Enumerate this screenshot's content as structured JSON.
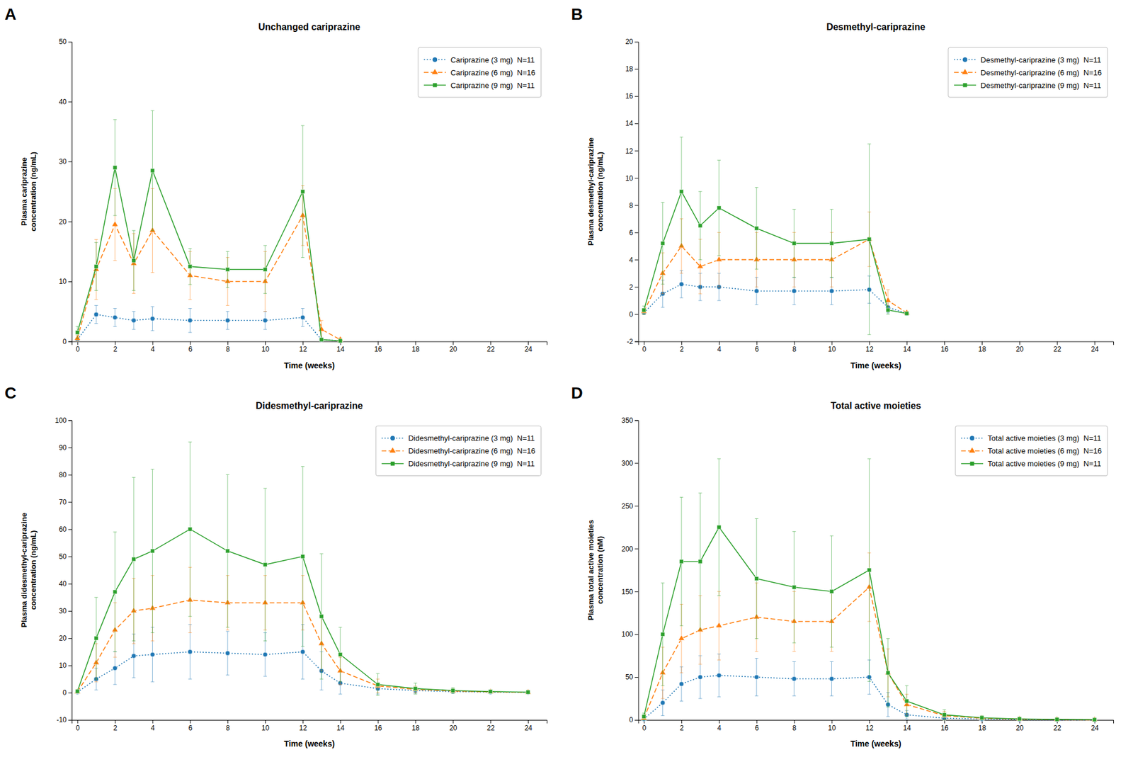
{
  "chart_data": [
    {
      "type": "line",
      "title": "Unchanged cariprazine",
      "annotations": [
        "A"
      ],
      "xlabel": "Time (weeks)",
      "ylabel": "Plasma cariprazine\nconcentration (ng/mL)",
      "x": [
        0,
        1,
        2,
        3,
        4,
        6,
        8,
        10,
        12,
        13,
        14
      ],
      "xlim": [
        -0.3,
        25
      ],
      "xticks": [
        0,
        2,
        4,
        6,
        8,
        10,
        12,
        14,
        16,
        18,
        20,
        22,
        24
      ],
      "ylim": [
        0,
        50
      ],
      "yticks": [
        0,
        10,
        20,
        30,
        40,
        50
      ],
      "grid": false,
      "legend": "upper right",
      "series": [
        {
          "name": "Cariprazine (3 mg)  N=11",
          "marker": "circle",
          "line_style": "dotted",
          "values": [
            0.3,
            4.5,
            4.0,
            3.5,
            3.8,
            3.5,
            3.5,
            3.5,
            4.0,
            0.3,
            0.1
          ],
          "errors": [
            0.3,
            1.5,
            1.5,
            1.5,
            2.0,
            2.0,
            1.5,
            1.5,
            1.5,
            0.3,
            0.1
          ]
        },
        {
          "name": "Cariprazine (6 mg)  N=16",
          "marker": "triangle",
          "line_style": "dashed",
          "values": [
            0.5,
            12.0,
            19.5,
            13.0,
            18.5,
            11.0,
            10.0,
            10.0,
            21.0,
            2.0,
            0.3
          ],
          "errors": [
            0.5,
            5.0,
            6.0,
            5.0,
            7.0,
            4.0,
            4.0,
            5.0,
            5.0,
            1.5,
            0.3
          ]
        },
        {
          "name": "Cariprazine (9 mg)  N=11",
          "marker": "square",
          "line_style": "solid",
          "values": [
            1.5,
            12.5,
            29.0,
            13.5,
            28.5,
            12.5,
            12.0,
            12.0,
            25.0,
            0.3,
            0.1
          ],
          "errors": [
            1.0,
            4.0,
            8.0,
            5.0,
            10.0,
            3.0,
            3.0,
            4.0,
            11.0,
            0.3,
            0.1
          ]
        }
      ]
    },
    {
      "type": "line",
      "title": "Desmethyl-cariprazine",
      "annotations": [
        "B"
      ],
      "xlabel": "Time (weeks)",
      "ylabel": "Plasma desmethyl-cariprazine\nconcentration (ng/mL)",
      "x": [
        0,
        1,
        2,
        3,
        4,
        6,
        8,
        10,
        12,
        13,
        14
      ],
      "xlim": [
        -0.3,
        25
      ],
      "xticks": [
        0,
        2,
        4,
        6,
        8,
        10,
        12,
        14,
        16,
        18,
        20,
        22,
        24
      ],
      "ylim": [
        -2,
        20
      ],
      "yticks": [
        -2,
        0,
        2,
        4,
        6,
        8,
        10,
        12,
        14,
        16,
        18,
        20
      ],
      "grid": false,
      "legend": "upper right",
      "series": [
        {
          "name": "Desmethyl-cariprazine (3 mg)  N=11",
          "marker": "circle",
          "line_style": "dotted",
          "values": [
            0.1,
            1.5,
            2.2,
            2.0,
            2.0,
            1.7,
            1.7,
            1.7,
            1.8,
            0.5,
            0.05
          ],
          "errors": [
            0.1,
            1.0,
            1.0,
            1.0,
            1.0,
            1.0,
            1.0,
            1.0,
            1.0,
            0.4,
            0.05
          ]
        },
        {
          "name": "Desmethyl-cariprazine (6 mg)  N=16",
          "marker": "triangle",
          "line_style": "dashed",
          "values": [
            0.2,
            3.0,
            5.0,
            3.5,
            4.0,
            4.0,
            4.0,
            4.0,
            5.5,
            1.0,
            0.1
          ],
          "errors": [
            0.2,
            1.5,
            2.0,
            2.0,
            2.0,
            2.0,
            2.0,
            2.0,
            2.0,
            0.8,
            0.1
          ]
        },
        {
          "name": "Desmethyl-cariprazine (9 mg)  N=11",
          "marker": "square",
          "line_style": "solid",
          "values": [
            0.3,
            5.2,
            9.0,
            6.5,
            7.8,
            6.3,
            5.2,
            5.2,
            5.5,
            0.3,
            0.05
          ],
          "errors": [
            0.3,
            3.0,
            4.0,
            2.5,
            3.5,
            3.0,
            2.5,
            2.5,
            7.0,
            0.3,
            0.05
          ]
        }
      ]
    },
    {
      "type": "line",
      "title": "Didesmethyl-cariprazine",
      "annotations": [
        "C"
      ],
      "xlabel": "Time (weeks)",
      "ylabel": "Plasma didesmethyl-cariprazine\nconcentration (ng/mL)",
      "x": [
        0,
        1,
        2,
        3,
        4,
        6,
        8,
        10,
        12,
        13,
        14,
        16,
        18,
        20,
        22,
        24
      ],
      "xlim": [
        -0.3,
        25
      ],
      "xticks": [
        0,
        2,
        4,
        6,
        8,
        10,
        12,
        14,
        16,
        18,
        20,
        22,
        24
      ],
      "ylim": [
        -10,
        100
      ],
      "yticks": [
        -10,
        0,
        10,
        20,
        30,
        40,
        50,
        60,
        70,
        80,
        90,
        100
      ],
      "grid": false,
      "legend": "upper right",
      "series": [
        {
          "name": "Didesmethyl-cariprazine (3 mg)  N=11",
          "marker": "circle",
          "line_style": "dotted",
          "values": [
            0.2,
            5.0,
            9.0,
            13.5,
            14.0,
            15.0,
            14.5,
            14.0,
            15.0,
            8.0,
            3.5,
            1.5,
            0.8,
            0.4,
            0.2,
            0.1
          ],
          "errors": [
            0.2,
            4.0,
            6.0,
            8.0,
            10.0,
            10.0,
            8.0,
            8.0,
            10.0,
            7.0,
            4.0,
            2.0,
            1.0,
            0.5,
            0.2,
            0.1
          ]
        },
        {
          "name": "Didesmethyl-cariprazine (6 mg)  N=16",
          "marker": "triangle",
          "line_style": "dashed",
          "values": [
            0.3,
            11.0,
            23.0,
            30.0,
            31.0,
            34.0,
            33.0,
            33.0,
            33.0,
            18.0,
            8.0,
            2.5,
            1.2,
            0.6,
            0.3,
            0.15
          ],
          "errors": [
            0.3,
            7.0,
            10.0,
            12.0,
            12.0,
            12.0,
            10.0,
            10.0,
            10.0,
            10.0,
            5.0,
            2.5,
            1.2,
            0.6,
            0.3,
            0.15
          ]
        },
        {
          "name": "Didesmethyl-cariprazine (9 mg)  N=11",
          "marker": "square",
          "line_style": "solid",
          "values": [
            0.5,
            20.0,
            37.0,
            49.0,
            52.0,
            60.0,
            52.0,
            47.0,
            50.0,
            28.0,
            14.0,
            3.0,
            1.5,
            0.8,
            0.4,
            0.2
          ],
          "errors": [
            0.5,
            15.0,
            22.0,
            30.0,
            30.0,
            32.0,
            28.0,
            28.0,
            33.0,
            23.0,
            10.0,
            4.0,
            2.0,
            1.0,
            0.5,
            0.2
          ]
        }
      ]
    },
    {
      "type": "line",
      "title": "Total active moieties",
      "annotations": [
        "D"
      ],
      "xlabel": "Time (weeks)",
      "ylabel": "Plasma total active moieties\nconcentration (nM)",
      "x": [
        0,
        1,
        2,
        3,
        4,
        6,
        8,
        10,
        12,
        13,
        14,
        16,
        18,
        20,
        22,
        24
      ],
      "xlim": [
        -0.3,
        25
      ],
      "xticks": [
        0,
        2,
        4,
        6,
        8,
        10,
        12,
        14,
        16,
        18,
        20,
        22,
        24
      ],
      "ylim": [
        0,
        350
      ],
      "yticks": [
        0,
        50,
        100,
        150,
        200,
        250,
        300,
        350
      ],
      "grid": false,
      "legend": "upper right",
      "series": [
        {
          "name": "Total active moieties (3 mg)  N=11",
          "marker": "circle",
          "line_style": "dotted",
          "values": [
            1.0,
            20.0,
            42.0,
            50.0,
            52.0,
            50.0,
            48.0,
            48.0,
            50.0,
            18.0,
            6.0,
            2.0,
            1.0,
            0.5,
            0.3,
            0.1
          ],
          "errors": [
            1.0,
            15.0,
            20.0,
            25.0,
            25.0,
            22.0,
            20.0,
            20.0,
            20.0,
            14.0,
            5.0,
            2.0,
            1.0,
            0.5,
            0.3,
            0.1
          ]
        },
        {
          "name": "Total active moieties (6 mg)  N=16",
          "marker": "triangle",
          "line_style": "dashed",
          "values": [
            2.0,
            55.0,
            95.0,
            105.0,
            110.0,
            120.0,
            115.0,
            115.0,
            155.0,
            55.0,
            18.0,
            5.0,
            2.0,
            1.0,
            0.5,
            0.2
          ],
          "errors": [
            2.0,
            30.0,
            40.0,
            40.0,
            40.0,
            40.0,
            35.0,
            35.0,
            40.0,
            28.0,
            12.0,
            5.0,
            2.0,
            1.0,
            0.5,
            0.2
          ]
        },
        {
          "name": "Total active moieties (9 mg)  N=11",
          "marker": "square",
          "line_style": "solid",
          "values": [
            4.0,
            100.0,
            185.0,
            185.0,
            225.0,
            165.0,
            155.0,
            150.0,
            175.0,
            55.0,
            22.0,
            6.0,
            2.5,
            1.2,
            0.6,
            0.3
          ],
          "errors": [
            4.0,
            60.0,
            75.0,
            80.0,
            80.0,
            70.0,
            65.0,
            65.0,
            130.0,
            40.0,
            18.0,
            6.0,
            2.5,
            1.2,
            0.6,
            0.3
          ]
        }
      ]
    }
  ]
}
